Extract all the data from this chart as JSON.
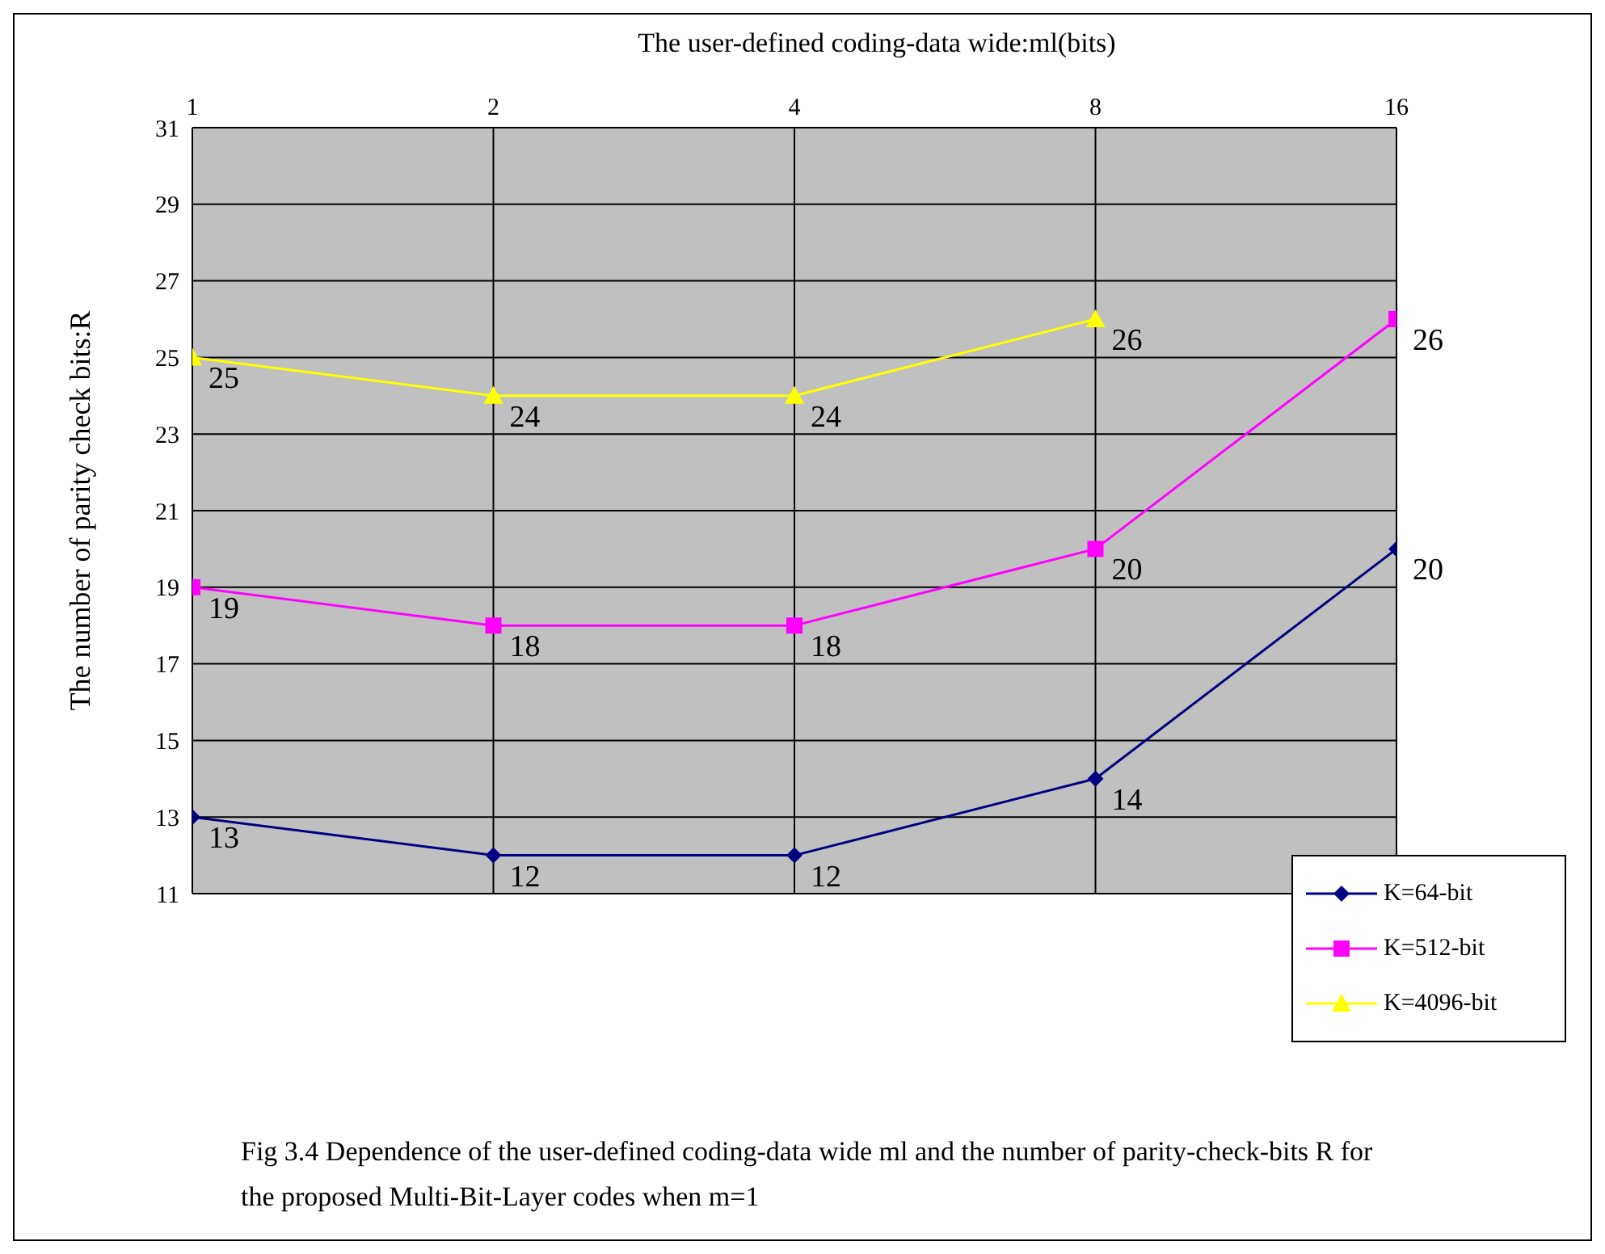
{
  "chart_data": {
    "type": "line",
    "xlabel": "The user-defined coding-data wide:ml(bits)",
    "ylabel": "The number of parity check bits:R",
    "categories": [
      "1",
      "2",
      "4",
      "8",
      "16"
    ],
    "ylim": [
      11,
      31
    ],
    "yticks": [
      11,
      13,
      15,
      17,
      19,
      21,
      23,
      25,
      27,
      29,
      31
    ],
    "grid": true,
    "legend": "bottom right",
    "series": [
      {
        "name": "K=64-bit",
        "color": "#000080",
        "marker": "diamond",
        "values": [
          13,
          12,
          12,
          14,
          20
        ],
        "value_labels": [
          "13",
          "12",
          "12",
          "14",
          "20"
        ]
      },
      {
        "name": "K=512-bit",
        "color": "#ff00ff",
        "marker": "square",
        "values": [
          19,
          18,
          18,
          20,
          26
        ],
        "value_labels": [
          "19",
          "18",
          "18",
          "20",
          "26"
        ]
      },
      {
        "name": "K=4096-bit",
        "color": "#ffff00",
        "marker": "triangle",
        "values": [
          25,
          24,
          24,
          26,
          null
        ],
        "value_labels": [
          "25",
          "24",
          "24",
          "26",
          null
        ]
      }
    ],
    "annotations": [
      "Fig 3.4 Dependence of the user-defined coding-data wide ml and the number of parity-check-bits R for the proposed Multi-Bit-Layer codes when m=1"
    ]
  }
}
